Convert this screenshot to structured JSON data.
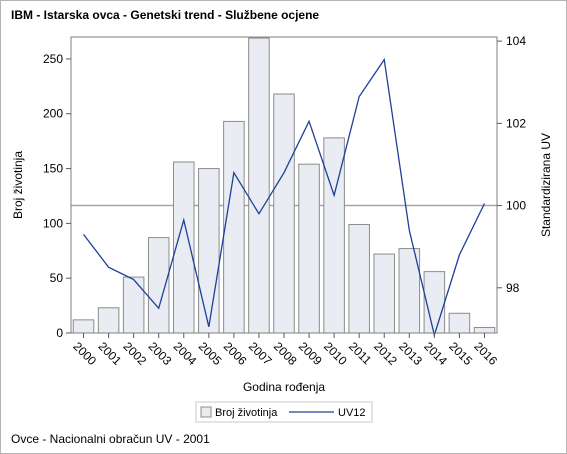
{
  "title": "IBM - Istarska ovca - Genetski trend - Službene ocjene",
  "footnote": "Ovce - Nacionalni obračun UV - 2001",
  "colors": {
    "bar_fill": "#e9ecf2",
    "bar_stroke": "#8c8c8c",
    "line": "#1f3f99",
    "reference_line": "#a5a5a5"
  },
  "chart_data": {
    "type": "bar",
    "categories": [
      "2000",
      "2001",
      "2002",
      "2003",
      "2004",
      "2005",
      "2006",
      "2007",
      "2008",
      "2009",
      "2010",
      "2011",
      "2012",
      "2013",
      "2014",
      "2015",
      "2016"
    ],
    "xlabel": "Godina rođenja",
    "ylabel": "Broj životinja",
    "y2label": "Standardizirana UV",
    "ylim": [
      0,
      270
    ],
    "yticks": [
      0,
      50,
      100,
      150,
      200,
      250
    ],
    "y2lim": [
      96.9,
      104.1
    ],
    "y2ticks": [
      98,
      100,
      102,
      104
    ],
    "reference_line_y2": 100,
    "grid": false,
    "series": [
      {
        "name": "Broj životinja",
        "type": "bar",
        "axis": "left",
        "values": [
          12,
          23,
          51,
          87,
          156,
          150,
          193,
          269,
          218,
          154,
          178,
          99,
          72,
          77,
          56,
          18,
          5
        ]
      },
      {
        "name": "UV12",
        "type": "line",
        "axis": "right",
        "values": [
          99.3,
          98.5,
          98.2,
          97.5,
          99.65,
          97.05,
          100.8,
          99.8,
          100.8,
          102.05,
          100.25,
          102.65,
          103.55,
          99.4,
          96.85,
          98.8,
          100.05
        ]
      }
    ],
    "legend": {
      "position": "bottom",
      "items": [
        "Broj životinja",
        "UV12"
      ]
    }
  }
}
